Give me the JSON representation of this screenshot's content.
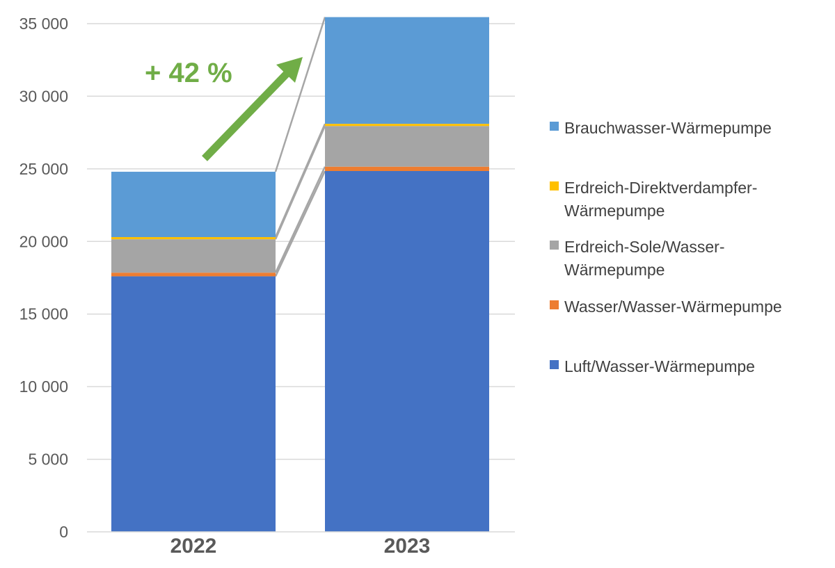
{
  "chart_data": {
    "type": "bar",
    "stacked": true,
    "categories": [
      "2022",
      "2023"
    ],
    "series": [
      {
        "name": "Luft/Wasser-Wärmepumpe",
        "color": "#4472C4",
        "values": [
          17600,
          24850
        ]
      },
      {
        "name": "Wasser/Wasser-Wärmepumpe",
        "color": "#ED7D31",
        "values": [
          250,
          300
        ]
      },
      {
        "name": "Erdreich-Sole/Wasser-Wärmepumpe",
        "color": "#A5A5A5",
        "values": [
          2300,
          2800
        ]
      },
      {
        "name": "Erdreich-Direktverdampfer-Wärmepumpe",
        "color": "#FFC000",
        "values": [
          150,
          150
        ]
      },
      {
        "name": "Brauchwasser-Wärmepumpe",
        "color": "#5B9BD5",
        "values": [
          4500,
          7350
        ]
      }
    ],
    "ylim": [
      0,
      35000
    ],
    "yticks": [
      0,
      5000,
      10000,
      15000,
      20000,
      25000,
      30000,
      35000
    ],
    "ytick_labels": [
      "0",
      "5 000",
      "10 000",
      "15 000",
      "20 000",
      "25 000",
      "30 000",
      "35 000"
    ],
    "grid": true,
    "legend_position": "right",
    "legend_order": [
      {
        "lines": [
          "Brauchwasser-Wärmepumpe"
        ],
        "color": "#5B9BD5"
      },
      {
        "lines": [
          "Erdreich-Direktverdampfer-",
          "Wärmepumpe"
        ],
        "color": "#FFC000"
      },
      {
        "lines": [
          "Erdreich-Sole/Wasser-",
          "Wärmepumpe"
        ],
        "color": "#A5A5A5"
      },
      {
        "lines": [
          "Wasser/Wasser-Wärmepumpe"
        ],
        "color": "#ED7D31"
      },
      {
        "lines": [
          "Luft/Wasser-Wärmepumpe"
        ],
        "color": "#4472C4"
      }
    ],
    "annotation": {
      "text": "+ 42 %",
      "color": "#70AD47"
    },
    "title": "",
    "xlabel": "",
    "ylabel": ""
  }
}
